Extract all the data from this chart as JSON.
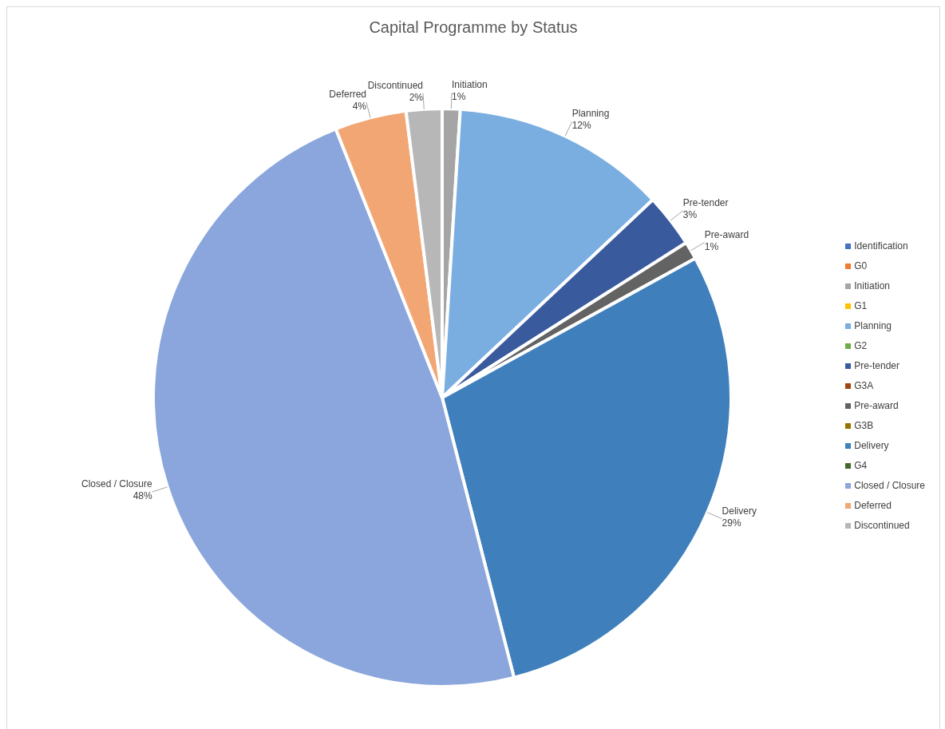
{
  "chart_data": {
    "type": "pie",
    "title": "Capital Programme by Status",
    "categories": [
      "Identification",
      "G0",
      "Initiation",
      "G1",
      "Planning",
      "G2",
      "Pre-tender",
      "G3A",
      "Pre-award",
      "G3B",
      "Delivery",
      "G4",
      "Closed / Closure",
      "Deferred",
      "Discontinued"
    ],
    "values": [
      0,
      0,
      1,
      0,
      12,
      0,
      3,
      0,
      1,
      0,
      29,
      0,
      48,
      4,
      2
    ],
    "value_labels": [
      null,
      null,
      "1%",
      null,
      "12%",
      null,
      "3%",
      null,
      "1%",
      null,
      "29%",
      null,
      "48%",
      "4%",
      "2%"
    ],
    "colors": [
      "#4472c4",
      "#ed7d31",
      "#a5a5a5",
      "#ffc000",
      "#7aaee0",
      "#70ad47",
      "#3a5a9e",
      "#9e480e",
      "#636363",
      "#997300",
      "#3f7fbb",
      "#43682b",
      "#8aa6dc",
      "#f2a673",
      "#b7b7b7"
    ],
    "legend": "right"
  }
}
